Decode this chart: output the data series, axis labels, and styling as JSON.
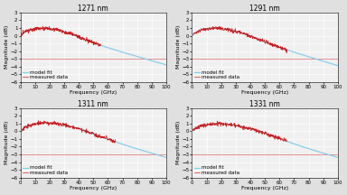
{
  "subplots": [
    {
      "title": "1271 nm",
      "peak_freq": 28,
      "peak_mag": 1.7,
      "rise_tc": 8,
      "rolloff_slope": 0.055,
      "meas_end": 55
    },
    {
      "title": "1291 nm",
      "peak_freq": 30,
      "peak_mag": 1.9,
      "rise_tc": 9,
      "rolloff_slope": 0.058,
      "meas_end": 65
    },
    {
      "title": "1311 nm",
      "peak_freq": 35,
      "peak_mag": 2.1,
      "rise_tc": 10,
      "rolloff_slope": 0.055,
      "meas_end": 65
    },
    {
      "title": "1331 nm",
      "peak_freq": 38,
      "peak_mag": 2.1,
      "rise_tc": 11,
      "rolloff_slope": 0.055,
      "meas_end": 65
    }
  ],
  "xlim": [
    0,
    100
  ],
  "ylim": [
    -6,
    3
  ],
  "yticks": [
    -6,
    -5,
    -4,
    -3,
    -2,
    -1,
    0,
    1,
    2,
    3
  ],
  "xticks": [
    0,
    10,
    20,
    30,
    40,
    50,
    60,
    70,
    80,
    90,
    100
  ],
  "xlabel": "Frequency (GHz)",
  "ylabel": "Magnitude (dB)",
  "model_color": "#87CEEB",
  "measured_color": "#CC0000",
  "bg_color": "#f0f0f0",
  "hline_y": -3,
  "hline_color": "#CC0000",
  "hline_alpha": 0.5,
  "title_fontsize": 5.5,
  "label_fontsize": 4.5,
  "tick_fontsize": 4,
  "legend_fontsize": 4,
  "fig_bg": "#e0e0e0"
}
